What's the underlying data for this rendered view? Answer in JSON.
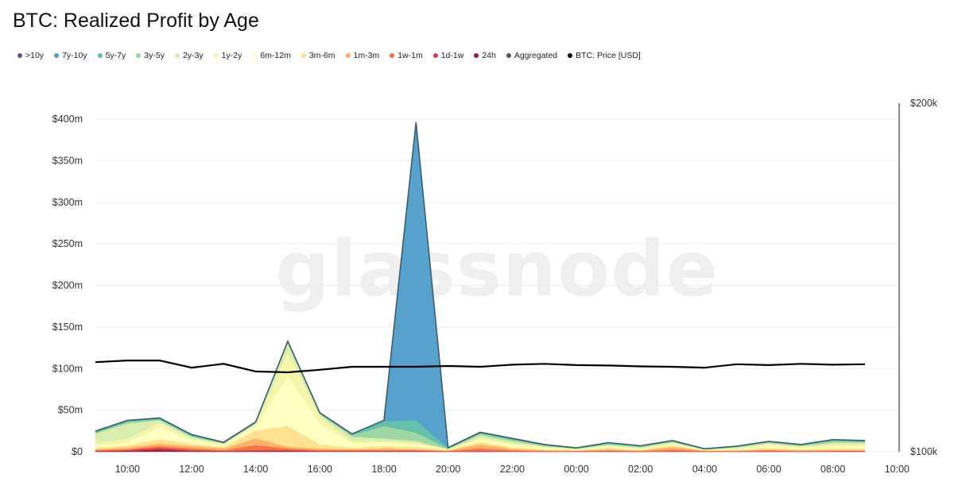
{
  "page": {
    "title": "BTC: Realized Profit by Age",
    "watermark": "glassnode"
  },
  "chart_data": {
    "type": "area",
    "title": "BTC: Realized Profit by Age",
    "x": [
      "09:00",
      "10:00",
      "11:00",
      "12:00",
      "13:00",
      "14:00",
      "15:00",
      "16:00",
      "17:00",
      "18:00",
      "19:00",
      "20:00",
      "21:00",
      "22:00",
      "23:00",
      "00:00",
      "01:00",
      "02:00",
      "03:00",
      "04:00",
      "05:00",
      "06:00",
      "07:00",
      "08:00",
      "09:00"
    ],
    "x_tick_labels": [
      "10:00",
      "12:00",
      "14:00",
      "16:00",
      "18:00",
      "20:00",
      "22:00",
      "00:00",
      "02:00",
      "04:00",
      "06:00",
      "08:00",
      "10:00"
    ],
    "y_left": {
      "ylim": [
        0,
        400
      ],
      "unit": "USD millions",
      "ticks": [
        0,
        50,
        100,
        150,
        200,
        250,
        300,
        350,
        400
      ],
      "tick_labels": [
        "$0",
        "$50m",
        "$100m",
        "$150m",
        "$200m",
        "$250m",
        "$300m",
        "$350m",
        "$400m"
      ]
    },
    "y_right": {
      "scale": "log",
      "ylim": [
        100000,
        200000
      ],
      "tick_labels": [
        "$100k",
        "$200k"
      ]
    },
    "grid": true,
    "legend_position": "top-left",
    "series": [
      {
        "name": "24h",
        "color": "#9b1b30",
        "values": [
          0.5,
          1,
          3,
          1,
          0.5,
          1,
          1,
          0.5,
          0.5,
          0.5,
          0.5,
          0.2,
          0.5,
          0.3,
          0.2,
          0.2,
          0.3,
          0.2,
          0.3,
          0.2,
          0.2,
          0.3,
          0.2,
          0.3,
          0.3
        ]
      },
      {
        "name": "1d-1w",
        "color": "#d53e4f",
        "values": [
          0.5,
          1,
          2,
          1,
          0.5,
          1,
          1,
          0.5,
          0.5,
          0.5,
          0.5,
          0.3,
          0.5,
          0.3,
          0.2,
          0.2,
          0.3,
          0.2,
          0.3,
          0.2,
          0.2,
          0.3,
          0.2,
          0.3,
          0.3
        ]
      },
      {
        "name": "1w-1m",
        "color": "#f46d43",
        "values": [
          1,
          1,
          2,
          2,
          1,
          6,
          2,
          1,
          1,
          1,
          1,
          0.5,
          3,
          1,
          0.5,
          0.5,
          1,
          0.5,
          2,
          0.5,
          0.5,
          1,
          0.5,
          0.5,
          0.5
        ]
      },
      {
        "name": "1m-3m",
        "color": "#fdae61",
        "values": [
          1,
          2,
          3,
          3,
          2,
          8,
          2,
          2,
          1,
          2,
          1,
          0.5,
          5,
          2,
          1,
          0.5,
          1,
          0.5,
          3,
          0.5,
          0.5,
          1,
          1,
          1,
          1
        ]
      },
      {
        "name": "3m-6m",
        "color": "#fee08b",
        "values": [
          2,
          3,
          5,
          3,
          2,
          10,
          25,
          5,
          2,
          3,
          3,
          0.5,
          3,
          2,
          1,
          0.5,
          2,
          1,
          2,
          0.5,
          1,
          2,
          1,
          2,
          2
        ]
      },
      {
        "name": "6m-12m",
        "color": "#ffffbf",
        "values": [
          2,
          3,
          15,
          4,
          2,
          5,
          60,
          25,
          5,
          4,
          3,
          0.5,
          3,
          3,
          2,
          1,
          2,
          1,
          2,
          0.5,
          1,
          3,
          2,
          3,
          3
        ]
      },
      {
        "name": "1y-2y",
        "color": "#f5f5a6",
        "values": [
          3,
          5,
          5,
          2,
          1,
          2,
          30,
          8,
          3,
          2,
          2,
          0.5,
          2,
          2,
          1,
          0.5,
          1,
          1,
          1,
          0.2,
          1,
          2,
          1,
          2,
          2
        ]
      },
      {
        "name": "2y-3y",
        "color": "#d7ecaa",
        "values": [
          12,
          18,
          3,
          2,
          1,
          1,
          10,
          3,
          5,
          3,
          2,
          0.5,
          3,
          2,
          1,
          0.3,
          1,
          1,
          1,
          0.2,
          1,
          1,
          1,
          2,
          2
        ]
      },
      {
        "name": "3y-5y",
        "color": "#99d59f",
        "values": [
          1,
          2,
          1,
          1,
          0.5,
          1,
          1,
          1,
          2,
          15,
          10,
          0.5,
          2,
          2,
          1,
          0.3,
          1,
          1,
          1,
          0.3,
          0.5,
          1,
          1,
          2,
          1
        ]
      },
      {
        "name": "5y-7y",
        "color": "#5bbfa4",
        "values": [
          1,
          1,
          1,
          1,
          0.5,
          0.5,
          0.5,
          0.5,
          1,
          6,
          15,
          0.5,
          1,
          1,
          0.5,
          0.3,
          1,
          0.5,
          0.5,
          0.2,
          0.5,
          0.5,
          0.5,
          1,
          1
        ]
      },
      {
        "name": "7y-10y",
        "color": "#4d9dc9",
        "values": [
          0.5,
          0.5,
          0.5,
          0.5,
          0.3,
          0.3,
          0.3,
          0.3,
          0.3,
          0.5,
          358,
          0.3,
          0.3,
          0.3,
          0.2,
          0.2,
          0.3,
          0.2,
          0.2,
          0.1,
          0.2,
          0.3,
          0.2,
          0.3,
          0.3
        ]
      },
      {
        "name": ">10y",
        "color": "#5e4fa2",
        "values": [
          0.2,
          0.2,
          0.2,
          0.2,
          0.1,
          0.1,
          0.1,
          0.1,
          0.1,
          0.2,
          0.2,
          0.1,
          0.1,
          0.1,
          0.1,
          0.1,
          0.1,
          0.1,
          0.1,
          0.1,
          0.1,
          0.1,
          0.1,
          0.1,
          0.1
        ]
      },
      {
        "name": "Aggregated",
        "color": "#555555",
        "line": true
      },
      {
        "name": "BTC: Price [USD]",
        "color": "#000000",
        "axis": "right",
        "values": [
          119500,
          119900,
          119900,
          118200,
          119100,
          117300,
          117100,
          117700,
          118400,
          118400,
          118400,
          118600,
          118400,
          118900,
          119100,
          118800,
          118700,
          118500,
          118400,
          118200,
          119000,
          118800,
          119100,
          118900,
          119000
        ]
      }
    ]
  },
  "legend": [
    {
      "label": ">10y",
      "color": "#5e4fa2"
    },
    {
      "label": "7y-10y",
      "color": "#4d9dc9"
    },
    {
      "label": "5y-7y",
      "color": "#5bbfa4"
    },
    {
      "label": "3y-5y",
      "color": "#99d59f"
    },
    {
      "label": "2y-3y",
      "color": "#d7ecaa"
    },
    {
      "label": "1y-2y",
      "color": "#f5f5a6"
    },
    {
      "label": "6m-12m",
      "color": "#ffffbf"
    },
    {
      "label": "3m-6m",
      "color": "#fee08b"
    },
    {
      "label": "1m-3m",
      "color": "#fdae61"
    },
    {
      "label": "1w-1m",
      "color": "#f46d43"
    },
    {
      "label": "1d-1w",
      "color": "#d53e4f"
    },
    {
      "label": "24h",
      "color": "#9b1b30"
    },
    {
      "label": "Aggregated",
      "color": "#555555"
    },
    {
      "label": "BTC: Price [USD]",
      "color": "#000000"
    }
  ]
}
